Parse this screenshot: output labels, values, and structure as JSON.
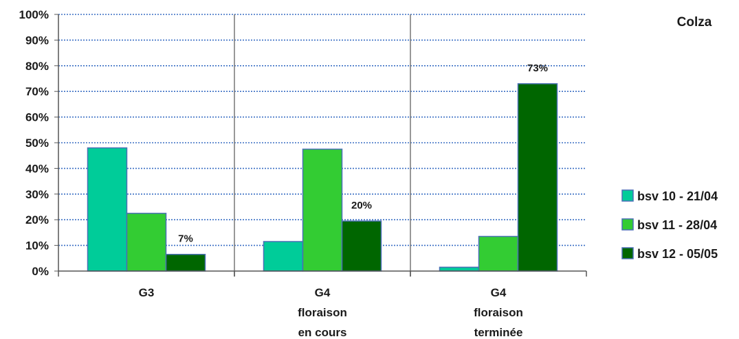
{
  "chart_data": {
    "type": "bar",
    "title": "Colza",
    "xlabel": "",
    "ylabel": "",
    "ylim": [
      0,
      100
    ],
    "yticks": [
      "0%",
      "10%",
      "20%",
      "30%",
      "40%",
      "50%",
      "60%",
      "70%",
      "80%",
      "90%",
      "100%"
    ],
    "grid": true,
    "legend_position": "right",
    "categories": [
      [
        "G3"
      ],
      [
        "G4",
        "floraison",
        "en cours"
      ],
      [
        "G4",
        "floraison",
        "terminée"
      ]
    ],
    "series": [
      {
        "name": "bsv 10 - 21/04",
        "color": "#00cc99",
        "values": [
          48,
          11.5,
          1.5
        ]
      },
      {
        "name": "bsv 11 - 28/04",
        "color": "#33cc33",
        "values": [
          22.5,
          47.5,
          13.5
        ]
      },
      {
        "name": "bsv 12 - 05/05",
        "color": "#006600",
        "values": [
          6.5,
          19.5,
          73
        ]
      }
    ],
    "data_labels": [
      {
        "series": 2,
        "category": 0,
        "text": "7%"
      },
      {
        "series": 2,
        "category": 1,
        "text": "20%"
      },
      {
        "series": 2,
        "category": 2,
        "text": "73%"
      }
    ]
  }
}
